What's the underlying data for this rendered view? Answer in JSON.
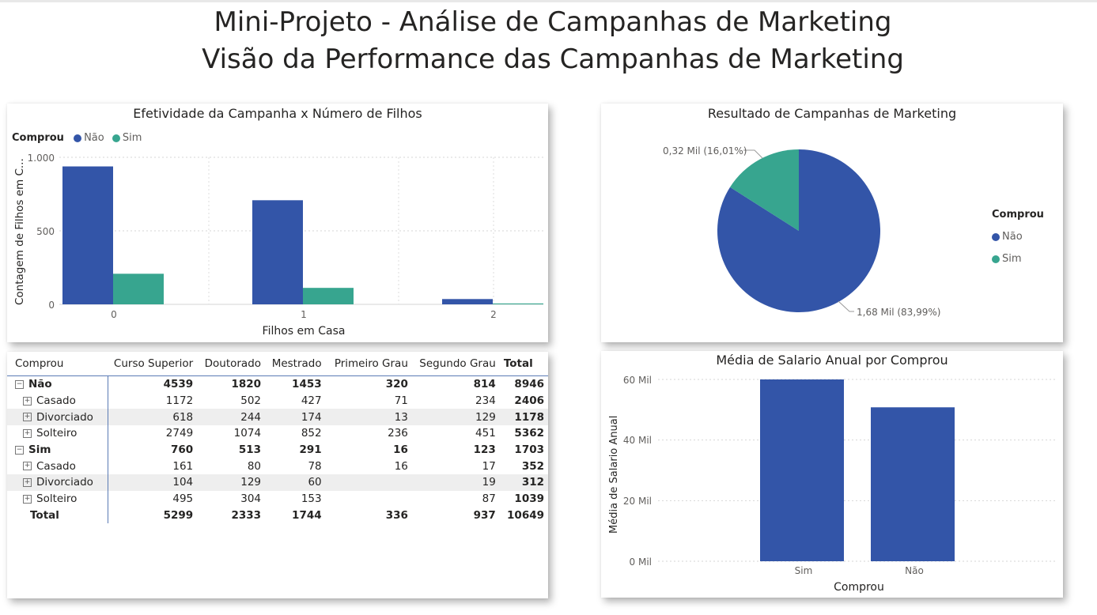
{
  "page": {
    "title1": "Mini-Projeto - Análise de Campanhas de Marketing",
    "title2": "Visão da Performance das Campanhas de Marketing"
  },
  "colors": {
    "nao": "#3355A8",
    "sim": "#37A58F"
  },
  "bar_card": {
    "title": "Efetividade da Campanha x Número de Filhos",
    "legend_title": "Comprou",
    "legend_items": [
      "Não",
      "Sim"
    ],
    "ylabel": "Contagem de Filhos em C...",
    "xlabel": "Filhos em Casa",
    "yticks": [
      "1.000",
      "500",
      "0"
    ]
  },
  "pie_card": {
    "title": "Resultado de Campanhas de Marketing",
    "legend_title": "Comprou",
    "legend_items": [
      "Não",
      "Sim"
    ],
    "label_sim": "0,32 Mil (16,01%)",
    "label_nao": "1,68 Mil (83,99%)"
  },
  "salary_card": {
    "title": "Média de Salario Anual por Comprou",
    "ylabel": "Média de Salario Anual",
    "xlabel": "Comprou",
    "yticks": [
      "60 Mil",
      "40 Mil",
      "20 Mil",
      "0 Mil"
    ]
  },
  "matrix": {
    "headers": [
      "Comprou",
      "Curso Superior",
      "Doutorado",
      "Mestrado",
      "Primeiro Grau",
      "Segundo Grau",
      "Total"
    ],
    "rows": [
      {
        "label": "Não",
        "level": 0,
        "values": [
          "4539",
          "1820",
          "1453",
          "320",
          "814",
          "8946"
        ]
      },
      {
        "label": "Casado",
        "level": 1,
        "values": [
          "1172",
          "502",
          "427",
          "71",
          "234",
          "2406"
        ]
      },
      {
        "label": "Divorciado",
        "level": 1,
        "values": [
          "618",
          "244",
          "174",
          "13",
          "129",
          "1178"
        ]
      },
      {
        "label": "Solteiro",
        "level": 1,
        "values": [
          "2749",
          "1074",
          "852",
          "236",
          "451",
          "5362"
        ]
      },
      {
        "label": "Sim",
        "level": 0,
        "values": [
          "760",
          "513",
          "291",
          "16",
          "123",
          "1703"
        ]
      },
      {
        "label": "Casado",
        "level": 1,
        "values": [
          "161",
          "80",
          "78",
          "16",
          "17",
          "352"
        ]
      },
      {
        "label": "Divorciado",
        "level": 1,
        "values": [
          "104",
          "129",
          "60",
          "",
          "19",
          "312"
        ]
      },
      {
        "label": "Solteiro",
        "level": 1,
        "values": [
          "495",
          "304",
          "153",
          "",
          "87",
          "1039"
        ]
      }
    ],
    "total": {
      "label": "Total",
      "values": [
        "5299",
        "2333",
        "1744",
        "336",
        "937",
        "10649"
      ]
    }
  },
  "chart_data": [
    {
      "type": "bar",
      "title": "Efetividade da Campanha x Número de Filhos",
      "categories": [
        "0",
        "1",
        "2"
      ],
      "series": [
        {
          "name": "Não",
          "values": [
            938,
            708,
            36
          ]
        },
        {
          "name": "Sim",
          "values": [
            208,
            112,
            6
          ]
        }
      ],
      "xlabel": "Filhos em Casa",
      "ylabel": "Contagem de Filhos em C...",
      "ylim": [
        0,
        1000
      ],
      "yticks": [
        0,
        500,
        1000
      ],
      "legend": "top-left",
      "grid": true
    },
    {
      "type": "pie",
      "title": "Resultado de Campanhas de Marketing",
      "labels": [
        "Não",
        "Sim"
      ],
      "values": [
        1.68,
        0.32
      ],
      "percent": [
        83.99,
        16.01
      ],
      "legend": "right"
    },
    {
      "type": "bar",
      "title": "Média de Salario Anual por Comprou",
      "categories": [
        "Sim",
        "Não"
      ],
      "values": [
        60000,
        50800
      ],
      "xlabel": "Comprou",
      "ylabel": "Média de Salario Anual",
      "ylim": [
        0,
        60000
      ],
      "yticks": [
        0,
        20000,
        40000,
        60000
      ],
      "grid": true
    }
  ]
}
